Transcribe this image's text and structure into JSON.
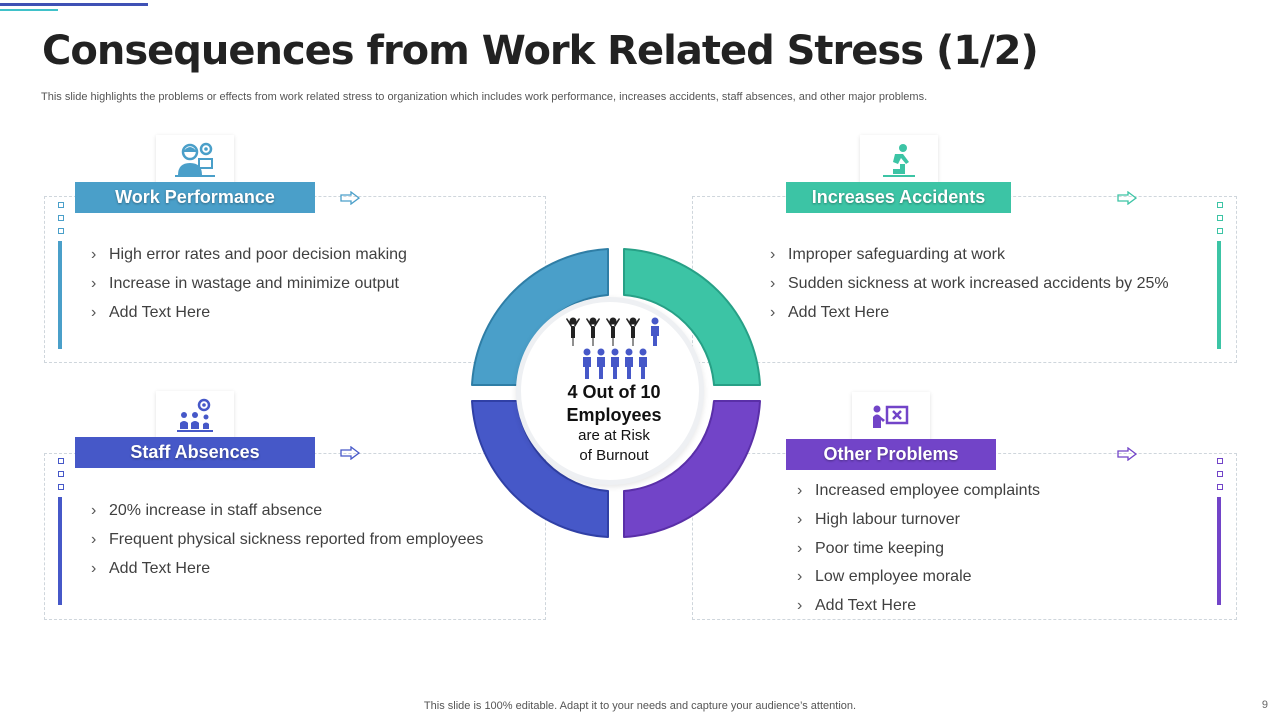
{
  "title": "Consequences from Work Related Stress (1/2)",
  "subtitle": "This slide highlights the problems or effects from work related stress to organization which includes work performance, increases accidents, staff absences, and other major problems.",
  "colors": {
    "work_performance": "#4a9fc9",
    "increases_accidents": "#3cc4a5",
    "staff_absences": "#4658c8",
    "other_problems": "#7244c8"
  },
  "sections": {
    "work_performance": {
      "label": "Work Performance",
      "icon": "stressed-worker-icon",
      "points": [
        "High error rates and poor decision making",
        "Increase  in wastage and minimize output",
        "Add Text Here"
      ]
    },
    "increases_accidents": {
      "label": "Increases Accidents",
      "icon": "falling-on-stairs-icon",
      "points": [
        "Improper safeguarding at work",
        "Sudden sickness at work increased accidents by 25%",
        "Add Text Here"
      ]
    },
    "staff_absences": {
      "label": "Staff Absences",
      "icon": "team-settings-icon",
      "points": [
        "20% increase in staff absence",
        "Frequent physical sickness reported from employees",
        "Add Text Here"
      ]
    },
    "other_problems": {
      "label": "Other Problems",
      "icon": "presentation-error-icon",
      "points": [
        "Increased employee complaints",
        "High labour turnover",
        "Poor time keeping",
        "Low employee morale",
        "Add Text Here"
      ]
    }
  },
  "center": {
    "stat": "4 Out of 10",
    "stat_line2": "Employees",
    "caption_line1": "are at Risk",
    "caption_line2": "of Burnout"
  },
  "footer": "This slide is 100% editable. Adapt it to your needs and capture your audience’s attention.",
  "page_number": "9"
}
